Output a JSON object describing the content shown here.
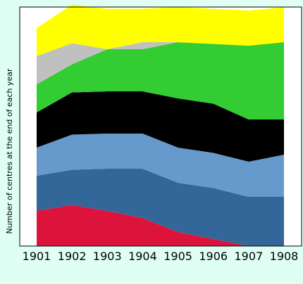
{
  "chart_data": {
    "type": "area",
    "stacked": true,
    "title": "",
    "xlabel": "",
    "ylabel": "Number of centres at the end of each year",
    "categories": [
      "1901",
      "1902",
      "1903",
      "1904",
      "1905",
      "1906",
      "1907",
      "1908"
    ],
    "ylim": [
      0,
      68
    ],
    "grid": false,
    "legend": "none",
    "series": [
      {
        "color": "#dc143c",
        "values": [
          10,
          11.7,
          10,
          8,
          4,
          2,
          0,
          0
        ]
      },
      {
        "color": "#336699",
        "values": [
          10,
          10,
          12,
          14,
          14,
          14.5,
          14,
          14
        ]
      },
      {
        "color": "#6699cc",
        "values": [
          8,
          10,
          10,
          10,
          10,
          10,
          10,
          12
        ]
      },
      {
        "color": "#000000",
        "values": [
          10,
          12,
          12,
          12,
          14,
          14,
          12,
          10
        ]
      },
      {
        "color": "#33cc33",
        "values": [
          8,
          8,
          12,
          12,
          16,
          17,
          21,
          22
        ]
      },
      {
        "color": "#c0c0c0",
        "values": [
          8,
          6,
          0,
          2,
          0,
          0,
          0,
          0
        ]
      },
      {
        "color": "#ffff00",
        "values": [
          8,
          11,
          11.5,
          9.5,
          10,
          10,
          10,
          10
        ]
      }
    ]
  }
}
